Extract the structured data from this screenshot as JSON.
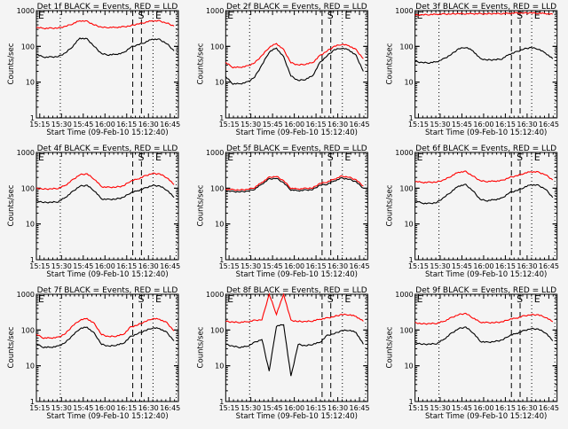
{
  "chart_data": {
    "type": "line",
    "layout": "3x3 grid",
    "shared": {
      "xlabel": "Start Time (09-Feb-10 15:12:40)",
      "ylabel": "Counts/sec",
      "yscale": "log",
      "ylim": [
        1,
        1000
      ],
      "ytick_labels": [
        "1",
        "10",
        "100",
        "1000"
      ],
      "xlim_minutes_after_1512": [
        0,
        98
      ],
      "xtick_labels": [
        "15:15",
        "15:30",
        "15:45",
        "16:00",
        "16:15",
        "16:30",
        "16:45"
      ],
      "xtick_minutes": [
        2.33,
        17.33,
        32.33,
        47.33,
        62.33,
        77.33,
        92.33
      ],
      "dotted_lines_minutes": [
        16.5,
        80.5,
        96.5
      ],
      "dashed_lines_minutes": [
        66.5,
        72.5
      ],
      "markers": [
        {
          "label": "E",
          "minute": 0.5
        },
        {
          "label": "S",
          "minute": 69.5
        },
        {
          "label": "E",
          "minute": 81.5
        }
      ],
      "series_names": [
        "Events (BLACK)",
        "LLD (RED)"
      ],
      "series_colors": {
        "events": "#000000",
        "lld": "#ff0000"
      },
      "sample_minutes": [
        0,
        5,
        10,
        15,
        20,
        25,
        30,
        35,
        40,
        45,
        50,
        55,
        60,
        65,
        70,
        75,
        80,
        85,
        90,
        95
      ]
    },
    "panels": [
      {
        "title": "Det 1f BLACK = Events, RED = LLD",
        "series": [
          {
            "name": "Events",
            "values": [
              60,
              50,
              50,
              52,
              65,
              100,
              170,
              160,
              100,
              62,
              58,
              60,
              65,
              95,
              110,
              130,
              160,
              155,
              120,
              75
            ]
          },
          {
            "name": "LLD",
            "values": [
              340,
              320,
              320,
              330,
              360,
              430,
              520,
              500,
              400,
              340,
              340,
              340,
              350,
              380,
              420,
              470,
              520,
              510,
              450,
              370
            ]
          }
        ]
      },
      {
        "title": "Det 2f BLACK = Events, RED = LLD",
        "series": [
          {
            "name": "Events",
            "values": [
              14,
              9,
              9,
              10,
              14,
              30,
              70,
              90,
              50,
              15,
              11,
              12,
              15,
              35,
              55,
              80,
              90,
              80,
              55,
              20
            ]
          },
          {
            "name": "LLD",
            "values": [
              35,
              26,
              26,
              28,
              35,
              55,
              95,
              120,
              80,
              35,
              30,
              32,
              35,
              55,
              75,
              100,
              115,
              105,
              80,
              45
            ]
          }
        ]
      },
      {
        "title": "Det 3f BLACK = Events, RED = LLD",
        "series": [
          {
            "name": "Events",
            "values": [
              38,
              35,
              35,
              37,
              45,
              60,
              85,
              95,
              75,
              45,
              42,
              42,
              45,
              60,
              70,
              85,
              92,
              85,
              65,
              45
            ]
          },
          {
            "name": "LLD",
            "values": [
              750,
              760,
              780,
              790,
              800,
              810,
              820,
              820,
              820,
              810,
              820,
              820,
              830,
              840,
              850,
              860,
              860,
              850,
              830,
              790
            ]
          }
        ]
      },
      {
        "title": "Det 4f BLACK = Events, RED = LLD",
        "series": [
          {
            "name": "Events",
            "values": [
              45,
              40,
              40,
              42,
              55,
              80,
              115,
              120,
              85,
              50,
              48,
              50,
              55,
              75,
              85,
              100,
              120,
              115,
              90,
              55
            ]
          },
          {
            "name": "LLD",
            "values": [
              100,
              95,
              95,
              100,
              120,
              170,
              240,
              250,
              180,
              110,
              105,
              108,
              115,
              160,
              180,
              220,
              260,
              250,
              200,
              125
            ]
          }
        ]
      },
      {
        "title": "Det 5f BLACK = Events, RED = LLD",
        "series": [
          {
            "name": "Events",
            "values": [
              85,
              80,
              80,
              82,
              95,
              130,
              180,
              190,
              140,
              90,
              85,
              88,
              92,
              120,
              130,
              160,
              190,
              180,
              150,
              100
            ]
          },
          {
            "name": "LLD",
            "values": [
              95,
              90,
              90,
              92,
              105,
              145,
              200,
              215,
              160,
              100,
              95,
              98,
              102,
              135,
              150,
              180,
              215,
              205,
              170,
              115
            ]
          }
        ]
      },
      {
        "title": "Det 6f BLACK = Events, RED = LLD",
        "series": [
          {
            "name": "Events",
            "values": [
              45,
              38,
              37,
              40,
              55,
              80,
              115,
              125,
              85,
              48,
              45,
              48,
              52,
              75,
              85,
              105,
              125,
              120,
              95,
              55
            ]
          },
          {
            "name": "LLD",
            "values": [
              155,
              145,
              145,
              150,
              170,
              220,
              280,
              290,
              220,
              160,
              155,
              158,
              162,
              200,
              220,
              260,
              290,
              280,
              240,
              170
            ]
          }
        ]
      },
      {
        "title": "Det 7f BLACK = Events, RED = LLD",
        "series": [
          {
            "name": "Events",
            "values": [
              40,
              33,
              33,
              35,
              45,
              70,
              110,
              120,
              80,
              40,
              35,
              38,
              42,
              65,
              80,
              95,
              115,
              110,
              85,
              50
            ]
          },
          {
            "name": "LLD",
            "values": [
              75,
              60,
              60,
              62,
              80,
              130,
              190,
              210,
              150,
              75,
              65,
              68,
              75,
              120,
              140,
              170,
              210,
              200,
              160,
              95
            ]
          }
        ]
      },
      {
        "title": "Det 8f BLACK = Events, RED = LLD",
        "series": [
          {
            "name": "Events",
            "values": [
              40,
              35,
              33,
              35,
              45,
              55,
              7,
              130,
              140,
              5,
              40,
              36,
              40,
              45,
              70,
              80,
              95,
              100,
              85,
              40
            ]
          },
          {
            "name": "LLD",
            "values": [
              175,
              165,
              165,
              170,
              185,
              195,
              1000,
              280,
              1000,
              185,
              175,
              172,
              180,
              200,
              215,
              240,
              270,
              270,
              240,
              175
            ]
          }
        ]
      },
      {
        "title": "Det 9f BLACK = Events, RED = LLD",
        "series": [
          {
            "name": "Events",
            "values": [
              45,
              40,
              40,
              42,
              55,
              80,
              110,
              120,
              85,
              48,
              45,
              48,
              52,
              70,
              80,
              95,
              110,
              105,
              85,
              50
            ]
          },
          {
            "name": "LLD",
            "values": [
              160,
              150,
              150,
              155,
              175,
              220,
              270,
              290,
              220,
              165,
              160,
              162,
              168,
              200,
              215,
              245,
              270,
              265,
              230,
              170
            ]
          }
        ]
      }
    ]
  }
}
